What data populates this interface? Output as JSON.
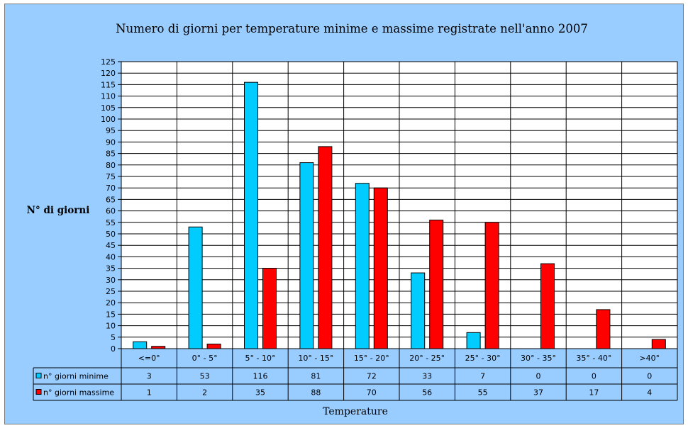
{
  "chart_data": {
    "type": "bar",
    "title": "Numero di giorni per temperature minime e massime registrate nell'anno 2007",
    "ylabel": "N° di giorni",
    "xlabel": "Temperature",
    "ylim": [
      0,
      125
    ],
    "ytick_step": 5,
    "grid": true,
    "legend": "data-table-left",
    "categories": [
      "<=0°",
      "0° - 5°",
      "5° - 10°",
      "10° - 15°",
      "15° - 20°",
      "20° - 25°",
      "25° - 30°",
      "30° - 35°",
      "35° - 40°",
      ">40°"
    ],
    "series": [
      {
        "name": "n° giorni minime",
        "color": "#00ccff",
        "values": [
          3,
          53,
          116,
          81,
          72,
          33,
          7,
          0,
          0,
          0
        ]
      },
      {
        "name": "n° giorni massime",
        "color": "#ff0000",
        "values": [
          1,
          2,
          35,
          88,
          70,
          56,
          55,
          37,
          17,
          4
        ]
      }
    ]
  },
  "colors": {
    "background": "#99ccff",
    "plot_area": "#ffffff",
    "grid": "#000000"
  }
}
